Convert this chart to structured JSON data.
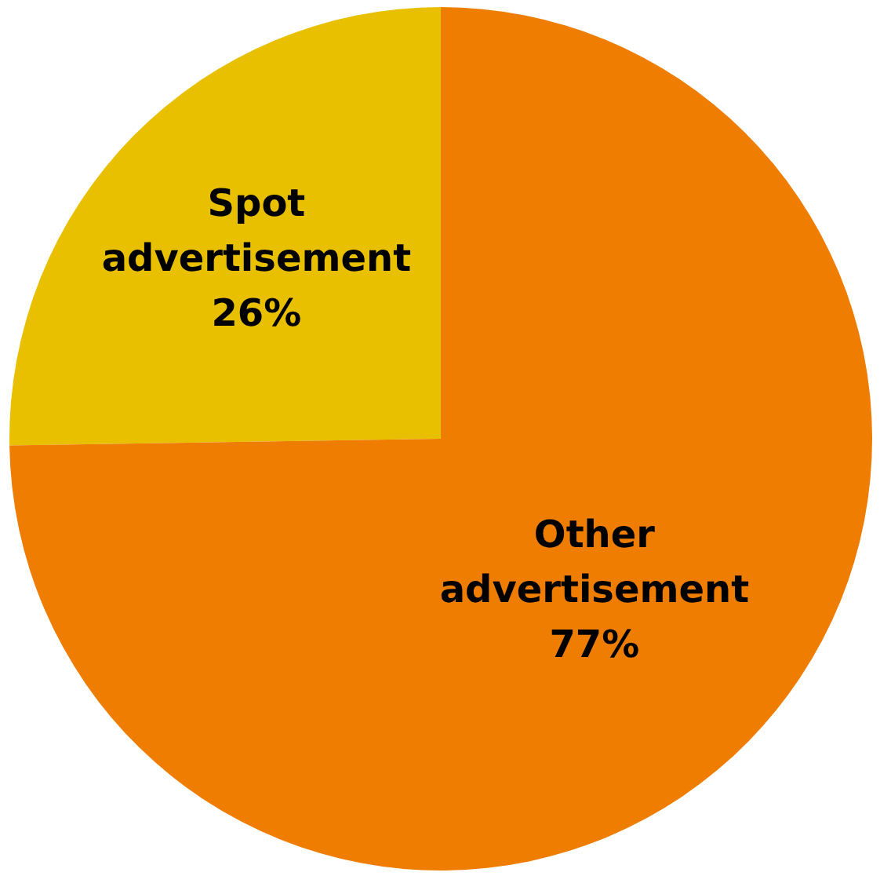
{
  "chart_data": {
    "type": "pie",
    "categories": [
      "Spot advertisement",
      "Other advertisement"
    ],
    "values": [
      26,
      77
    ],
    "colors": [
      "#e8c000",
      "#ee7d02"
    ],
    "value_labels": [
      "26%",
      "77%"
    ]
  }
}
